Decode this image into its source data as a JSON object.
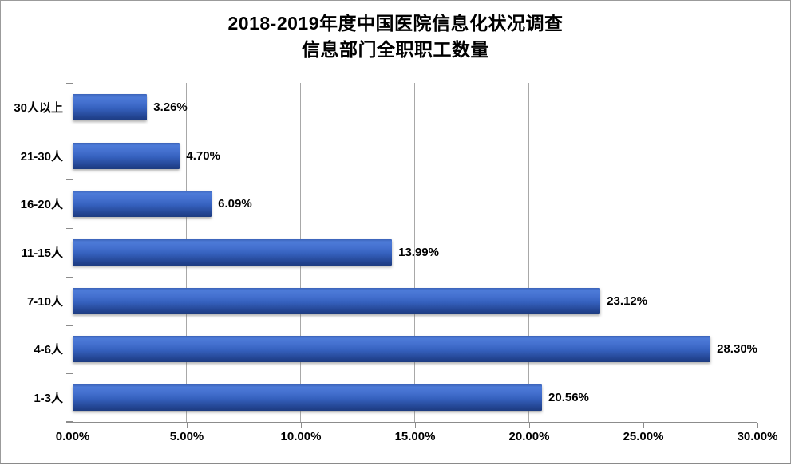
{
  "chart_data": {
    "type": "bar",
    "orientation": "horizontal",
    "title_line1": "2018-2019年度中国医院信息化状况调查",
    "title_line2": "信息部门全职职工数量",
    "categories": [
      "30人以上",
      "21-30人",
      "16-20人",
      "11-15人",
      "7-10人",
      "4-6人",
      "1-3人"
    ],
    "values": [
      3.26,
      4.7,
      6.09,
      13.99,
      23.12,
      28.3,
      20.56
    ],
    "value_labels": [
      "3.26%",
      "4.70%",
      "6.09%",
      "13.99%",
      "23.12%",
      "28.30%",
      "20.56%"
    ],
    "x_tick_labels": [
      "0.00%",
      "5.00%",
      "10.00%",
      "15.00%",
      "20.00%",
      "25.00%",
      "30.00%"
    ],
    "xlim": [
      0,
      30
    ],
    "grid": true,
    "legend": "none",
    "colors": {
      "bar_top": "#4d7bd8",
      "bar_mid": "#3560bd",
      "bar_bottom": "#1e3c80",
      "gridline": "#a8a8a8",
      "axis": "#8c8c8c",
      "text": "#000000",
      "background": "#ffffff"
    }
  }
}
